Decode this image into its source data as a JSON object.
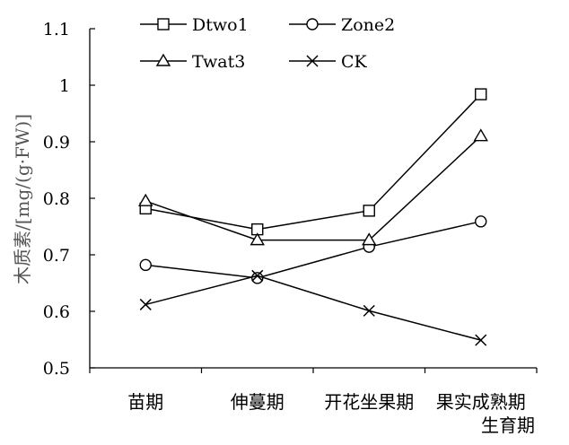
{
  "chart_data": {
    "type": "line",
    "title": "",
    "xlabel": "生育期",
    "ylabel": "木质素/[mg/(g·FW)]",
    "categories": [
      "苗期",
      "伸蔓期",
      "开花坐果期",
      "果实成熟期"
    ],
    "ylim": [
      0.5,
      1.1
    ],
    "yticks": [
      "0.5",
      "0.6",
      "0.7",
      "0.8",
      "0.9",
      "1",
      "1.1"
    ],
    "grid": false,
    "legend_position": "top",
    "series": [
      {
        "name": "Dtwo1",
        "marker": "square",
        "values": [
          0.782,
          0.745,
          0.778,
          0.984
        ]
      },
      {
        "name": "Zone2",
        "marker": "circle",
        "values": [
          0.682,
          0.659,
          0.714,
          0.759
        ]
      },
      {
        "name": "Twat3",
        "marker": "triangle",
        "values": [
          0.795,
          0.726,
          0.726,
          0.91
        ]
      },
      {
        "name": "CK",
        "marker": "x",
        "values": [
          0.612,
          0.663,
          0.601,
          0.549
        ]
      }
    ]
  }
}
